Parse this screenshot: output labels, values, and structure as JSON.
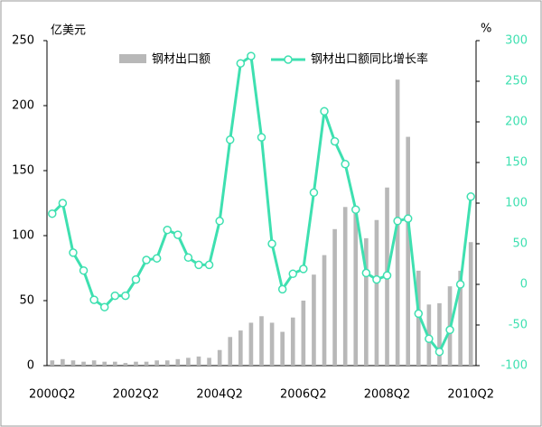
{
  "chart_data": {
    "type": "bar_line",
    "y_label": "亿美元",
    "y2_label": "%",
    "categories": [
      "2000Q2",
      null,
      null,
      null,
      null,
      null,
      null,
      null,
      "2002Q2",
      null,
      null,
      null,
      null,
      null,
      null,
      null,
      "2004Q2",
      null,
      null,
      null,
      null,
      null,
      null,
      null,
      "2006Q2",
      null,
      null,
      null,
      null,
      null,
      null,
      null,
      "2008Q2",
      null,
      null,
      null,
      null,
      null,
      null,
      null,
      "2010Q2"
    ],
    "series": [
      {
        "name": "钢材出口额",
        "color": "#b8b8b8",
        "type": "bar",
        "axis": "y",
        "values": [
          4,
          5,
          4,
          3,
          4,
          3,
          3,
          2,
          3,
          3,
          4,
          4,
          5,
          6,
          7,
          6,
          12,
          22,
          27,
          33,
          38,
          33,
          26,
          37,
          50,
          70,
          85,
          105,
          122,
          123,
          98,
          112,
          137,
          220,
          176,
          73,
          47,
          48,
          61,
          73,
          95
        ]
      },
      {
        "name": "钢材出口额同比增长率",
        "color": "#3ee0b0",
        "type": "line",
        "axis": "y2",
        "values": [
          87,
          100,
          39,
          17,
          -19,
          -28,
          -14,
          -14,
          6,
          30,
          32,
          67,
          61,
          33,
          24,
          24,
          78,
          178,
          272,
          281,
          181,
          50,
          -6,
          13,
          19,
          113,
          213,
          176,
          148,
          92,
          14,
          6,
          11,
          78,
          81,
          -36,
          -67,
          -83,
          -56,
          0,
          108
        ]
      }
    ],
    "ylim": [
      0,
      250
    ],
    "yticks": [
      0,
      50,
      100,
      150,
      200,
      250
    ],
    "y2lim": [
      -100,
      300
    ],
    "y2ticks": [
      -100,
      -50,
      0,
      50,
      100,
      150,
      200,
      250,
      300
    ]
  }
}
